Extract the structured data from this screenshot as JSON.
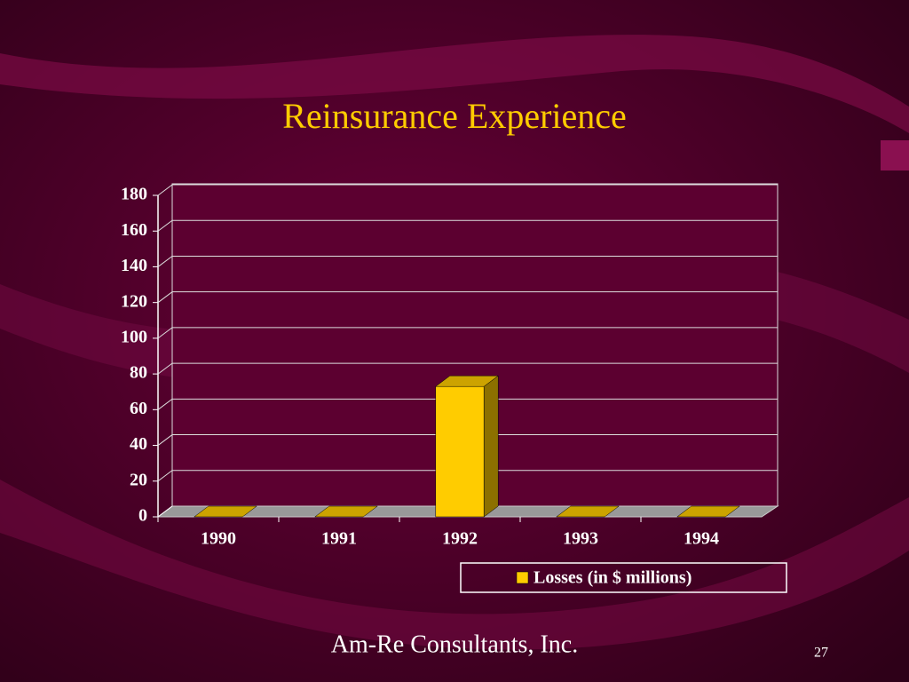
{
  "chart_data": {
    "type": "bar3d",
    "title": "Reinsurance Experience",
    "categories": [
      "1990",
      "1991",
      "1992",
      "1993",
      "1994"
    ],
    "series": [
      {
        "name": "Losses (in $ millions)",
        "color": "#ffcc00",
        "values": [
          0,
          0,
          73,
          0,
          0
        ]
      }
    ],
    "ylim": [
      0,
      180
    ],
    "yticks": [
      0,
      20,
      40,
      60,
      80,
      100,
      120,
      140,
      160,
      180
    ],
    "grid": true,
    "legend": "bottom-right"
  },
  "footer": {
    "text": "Am-Re Consultants, Inc.",
    "page": "27"
  }
}
